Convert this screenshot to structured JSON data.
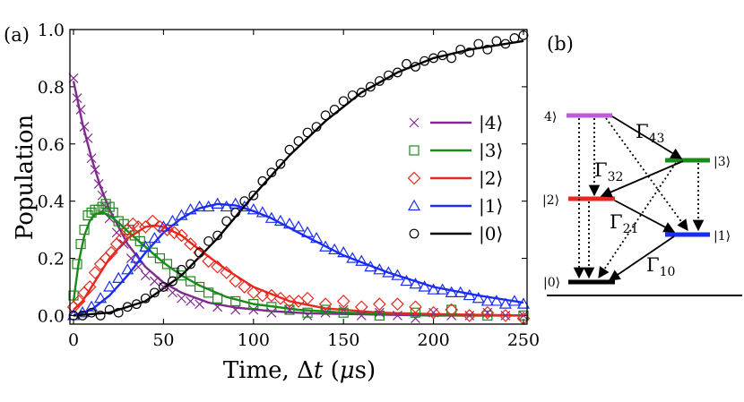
{
  "panels": {
    "a_label": "(a)",
    "b_label": "(b)"
  },
  "chart_data": {
    "type": "scatter",
    "title": "",
    "xlabel_text": "Time, ",
    "xlabel_delta": "Δ",
    "xlabel_var": "t",
    "xlabel_open": " (",
    "xlabel_mu": "μ",
    "xlabel_unit": "s)",
    "ylabel": "Population",
    "xlim": [
      -2,
      252
    ],
    "ylim": [
      -0.03,
      1.0
    ],
    "xticks": [
      "0",
      "50",
      "100",
      "150",
      "200",
      "250"
    ],
    "yticks": [
      "0.0",
      "0.2",
      "0.4",
      "0.6",
      "0.8",
      "1.0"
    ],
    "legend_position": "center-right",
    "series": [
      {
        "name": "|4⟩",
        "key": "4",
        "label": "4",
        "color": "#7f2a8e",
        "marker": "x",
        "fit_x": [
          0,
          5,
          10,
          15,
          20,
          30,
          40,
          50,
          60,
          75,
          90,
          110,
          130,
          160,
          200,
          250
        ],
        "fit_y": [
          0.82,
          0.67,
          0.55,
          0.45,
          0.37,
          0.25,
          0.17,
          0.115,
          0.08,
          0.045,
          0.028,
          0.015,
          0.008,
          0.004,
          0.0,
          0.0
        ],
        "points_x": [
          0,
          2,
          4,
          6,
          8,
          10,
          12,
          14,
          16,
          18,
          20,
          24,
          28,
          32,
          36,
          40,
          45,
          50,
          55,
          60,
          65,
          70,
          80,
          90,
          100,
          110,
          120,
          130,
          140,
          150,
          160,
          170,
          180,
          190,
          200,
          210,
          220,
          230,
          240,
          250
        ],
        "points_y": [
          0.83,
          0.76,
          0.72,
          0.66,
          0.62,
          0.55,
          0.51,
          0.46,
          0.42,
          0.38,
          0.34,
          0.29,
          0.25,
          0.2,
          0.17,
          0.14,
          0.12,
          0.1,
          0.08,
          0.06,
          0.05,
          0.04,
          0.03,
          0.02,
          0.02,
          0.01,
          0.02,
          0.0,
          0.01,
          0.02,
          0.0,
          0.01,
          0.0,
          -0.01,
          0.01,
          0.0,
          0.0,
          0.01,
          0.0,
          0.0
        ]
      },
      {
        "name": "|3⟩",
        "key": "3",
        "label": "3",
        "color": "#1a8a1a",
        "marker": "square",
        "fit_x": [
          0,
          3,
          6,
          9,
          12,
          16,
          20,
          25,
          30,
          40,
          50,
          60,
          70,
          85,
          100,
          125,
          150,
          200,
          250
        ],
        "fit_y": [
          0.05,
          0.19,
          0.28,
          0.33,
          0.355,
          0.36,
          0.35,
          0.325,
          0.295,
          0.24,
          0.185,
          0.14,
          0.105,
          0.065,
          0.04,
          0.02,
          0.01,
          0.003,
          0.0
        ],
        "points_x": [
          0,
          2,
          4,
          6,
          8,
          10,
          12,
          14,
          16,
          18,
          20,
          22,
          25,
          28,
          31,
          34,
          37,
          40,
          44,
          48,
          52,
          56,
          60,
          65,
          70,
          75,
          80,
          90,
          100,
          110,
          120,
          130,
          140,
          150,
          170,
          190,
          210,
          230,
          250
        ],
        "points_y": [
          0.07,
          0.18,
          0.25,
          0.3,
          0.35,
          0.36,
          0.37,
          0.37,
          0.38,
          0.39,
          0.38,
          0.36,
          0.33,
          0.32,
          0.3,
          0.28,
          0.26,
          0.24,
          0.22,
          0.2,
          0.18,
          0.15,
          0.14,
          0.12,
          0.1,
          0.08,
          0.06,
          0.05,
          0.04,
          0.03,
          0.02,
          0.01,
          0.02,
          0.01,
          0.0,
          0.01,
          0.02,
          0.0,
          0.0
        ]
      },
      {
        "name": "|2⟩",
        "key": "2",
        "label": "2",
        "color": "#e8281e",
        "marker": "diamond",
        "fit_x": [
          0,
          5,
          10,
          15,
          20,
          30,
          40,
          45,
          50,
          60,
          70,
          85,
          100,
          120,
          140,
          170,
          200,
          250
        ],
        "fit_y": [
          0.02,
          0.05,
          0.1,
          0.15,
          0.2,
          0.27,
          0.31,
          0.315,
          0.31,
          0.28,
          0.23,
          0.16,
          0.1,
          0.05,
          0.025,
          0.01,
          0.005,
          0.0
        ],
        "points_x": [
          0,
          3,
          6,
          9,
          12,
          15,
          18,
          21,
          24,
          27,
          30,
          33,
          36,
          40,
          44,
          48,
          52,
          56,
          60,
          65,
          70,
          75,
          80,
          85,
          90,
          95,
          100,
          105,
          110,
          115,
          120,
          125,
          130,
          140,
          150,
          160,
          170,
          180,
          190,
          200,
          210,
          220,
          230,
          240,
          250
        ],
        "points_y": [
          0.03,
          0.05,
          0.08,
          0.1,
          0.15,
          0.18,
          0.2,
          0.22,
          0.25,
          0.27,
          0.3,
          0.32,
          0.31,
          0.31,
          0.33,
          0.31,
          0.3,
          0.29,
          0.28,
          0.25,
          0.22,
          0.19,
          0.17,
          0.15,
          0.12,
          0.1,
          0.08,
          0.07,
          0.07,
          0.06,
          0.05,
          0.05,
          0.06,
          0.04,
          0.05,
          0.03,
          0.04,
          0.04,
          0.03,
          0.01,
          0.02,
          0.0,
          0.01,
          0.0,
          -0.01
        ]
      },
      {
        "name": "|1⟩",
        "key": "1",
        "label": "1",
        "color": "#1a2cf0",
        "marker": "triangle",
        "fit_x": [
          0,
          10,
          20,
          30,
          40,
          50,
          60,
          70,
          80,
          90,
          100,
          110,
          125,
          150,
          175,
          200,
          225,
          250
        ],
        "fit_y": [
          0.0,
          0.02,
          0.07,
          0.14,
          0.22,
          0.29,
          0.34,
          0.375,
          0.39,
          0.385,
          0.365,
          0.34,
          0.29,
          0.21,
          0.15,
          0.1,
          0.07,
          0.045
        ],
        "points_x": [
          0,
          5,
          10,
          15,
          20,
          25,
          30,
          35,
          40,
          45,
          50,
          55,
          60,
          65,
          70,
          75,
          80,
          85,
          90,
          95,
          100,
          105,
          110,
          115,
          120,
          125,
          130,
          135,
          140,
          145,
          150,
          155,
          160,
          165,
          170,
          175,
          180,
          185,
          190,
          195,
          200,
          205,
          210,
          215,
          220,
          225,
          230,
          235,
          240,
          245,
          250
        ],
        "points_y": [
          0.0,
          0.01,
          0.03,
          0.06,
          0.1,
          0.13,
          0.16,
          0.2,
          0.24,
          0.27,
          0.31,
          0.33,
          0.35,
          0.37,
          0.38,
          0.38,
          0.39,
          0.38,
          0.39,
          0.38,
          0.37,
          0.36,
          0.34,
          0.33,
          0.32,
          0.31,
          0.29,
          0.27,
          0.24,
          0.23,
          0.22,
          0.2,
          0.19,
          0.17,
          0.16,
          0.15,
          0.14,
          0.12,
          0.11,
          0.1,
          0.09,
          0.09,
          0.08,
          0.08,
          0.07,
          0.06,
          0.05,
          0.05,
          0.04,
          0.05,
          0.04
        ]
      },
      {
        "name": "|0⟩",
        "key": "0",
        "label": "0",
        "color": "#000000",
        "marker": "circle",
        "fit_x": [
          0,
          20,
          40,
          60,
          80,
          100,
          120,
          140,
          160,
          180,
          200,
          220,
          250
        ],
        "fit_y": [
          0.0,
          0.01,
          0.05,
          0.14,
          0.27,
          0.42,
          0.56,
          0.68,
          0.78,
          0.85,
          0.9,
          0.93,
          0.96
        ],
        "points_x": [
          0,
          5,
          10,
          15,
          20,
          25,
          30,
          35,
          40,
          45,
          50,
          55,
          60,
          65,
          70,
          75,
          80,
          85,
          90,
          95,
          100,
          105,
          110,
          115,
          120,
          125,
          130,
          135,
          140,
          145,
          150,
          155,
          160,
          165,
          170,
          175,
          180,
          185,
          190,
          195,
          200,
          205,
          210,
          215,
          220,
          225,
          230,
          235,
          240,
          245,
          250
        ],
        "points_y": [
          0.0,
          0.0,
          0.01,
          0.0,
          0.02,
          0.01,
          0.03,
          0.04,
          0.06,
          0.08,
          0.1,
          0.12,
          0.16,
          0.18,
          0.22,
          0.26,
          0.28,
          0.33,
          0.36,
          0.4,
          0.42,
          0.47,
          0.5,
          0.53,
          0.58,
          0.61,
          0.64,
          0.66,
          0.7,
          0.72,
          0.75,
          0.77,
          0.78,
          0.8,
          0.82,
          0.84,
          0.85,
          0.88,
          0.87,
          0.89,
          0.9,
          0.91,
          0.9,
          0.93,
          0.92,
          0.95,
          0.93,
          0.96,
          0.95,
          0.97,
          0.98
        ]
      }
    ]
  },
  "diagram": {
    "levels": [
      {
        "label": "4",
        "color": "#c158e0"
      },
      {
        "label": "3",
        "color": "#1a8a1a"
      },
      {
        "label": "2",
        "color": "#e8281e"
      },
      {
        "label": "1",
        "color": "#1a2cf0"
      },
      {
        "label": "0",
        "color": "#000000"
      }
    ],
    "rates": [
      {
        "sym": "Γ",
        "sub": "43"
      },
      {
        "sym": "Γ",
        "sub": "32"
      },
      {
        "sym": "Γ",
        "sub": "21"
      },
      {
        "sym": "Γ",
        "sub": "10"
      }
    ]
  }
}
